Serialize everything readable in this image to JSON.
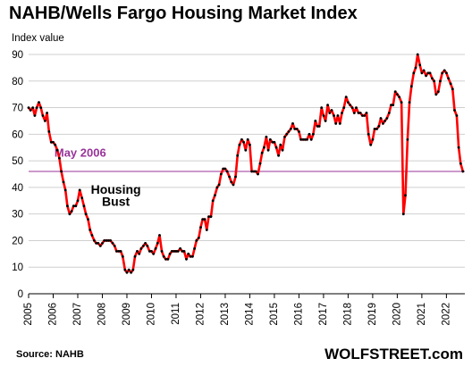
{
  "chart_data": {
    "type": "line",
    "title": "NAHB/Wells Fargo Housing Market Index",
    "ylabel": "Index value",
    "xlabel": "",
    "ylim": [
      0,
      90
    ],
    "xlim": [
      2005.0,
      2022.75
    ],
    "y_ticks": [
      "0",
      "10",
      "20",
      "30",
      "40",
      "50",
      "60",
      "70",
      "80",
      "90"
    ],
    "x_ticks": [
      "2005",
      "2006",
      "2007",
      "2008",
      "2009",
      "2010",
      "2011",
      "2012",
      "2013",
      "2014",
      "2015",
      "2016",
      "2017",
      "2018",
      "2019",
      "2020",
      "2021",
      "2022"
    ],
    "grid": "horizontal",
    "series": [
      {
        "color": "#ff0000",
        "marker_color": "#000000",
        "points": [
          [
            2005.0,
            70
          ],
          [
            2005.08,
            69
          ],
          [
            2005.17,
            70
          ],
          [
            2005.25,
            67
          ],
          [
            2005.33,
            70
          ],
          [
            2005.42,
            72
          ],
          [
            2005.5,
            70
          ],
          [
            2005.58,
            67
          ],
          [
            2005.67,
            65
          ],
          [
            2005.75,
            68
          ],
          [
            2005.83,
            61
          ],
          [
            2005.92,
            57
          ],
          [
            2006.0,
            57
          ],
          [
            2006.08,
            56
          ],
          [
            2006.17,
            54
          ],
          [
            2006.25,
            51
          ],
          [
            2006.33,
            46
          ],
          [
            2006.42,
            42
          ],
          [
            2006.5,
            39
          ],
          [
            2006.58,
            33
          ],
          [
            2006.67,
            30
          ],
          [
            2006.75,
            31
          ],
          [
            2006.83,
            33
          ],
          [
            2006.92,
            33
          ],
          [
            2007.0,
            35
          ],
          [
            2007.08,
            39
          ],
          [
            2007.17,
            36
          ],
          [
            2007.25,
            33
          ],
          [
            2007.33,
            30
          ],
          [
            2007.42,
            28
          ],
          [
            2007.5,
            24
          ],
          [
            2007.58,
            22
          ],
          [
            2007.67,
            20
          ],
          [
            2007.75,
            19
          ],
          [
            2007.83,
            19
          ],
          [
            2007.92,
            18
          ],
          [
            2008.0,
            19
          ],
          [
            2008.08,
            20
          ],
          [
            2008.17,
            20
          ],
          [
            2008.25,
            20
          ],
          [
            2008.33,
            20
          ],
          [
            2008.42,
            19
          ],
          [
            2008.5,
            18
          ],
          [
            2008.58,
            16
          ],
          [
            2008.67,
            16
          ],
          [
            2008.75,
            16
          ],
          [
            2008.83,
            14
          ],
          [
            2008.92,
            9
          ],
          [
            2009.0,
            8
          ],
          [
            2009.08,
            9
          ],
          [
            2009.17,
            8
          ],
          [
            2009.25,
            9
          ],
          [
            2009.33,
            14
          ],
          [
            2009.42,
            16
          ],
          [
            2009.5,
            15
          ],
          [
            2009.58,
            17
          ],
          [
            2009.67,
            18
          ],
          [
            2009.75,
            19
          ],
          [
            2009.83,
            18
          ],
          [
            2009.92,
            16
          ],
          [
            2010.0,
            16
          ],
          [
            2010.08,
            15
          ],
          [
            2010.17,
            17
          ],
          [
            2010.25,
            19
          ],
          [
            2010.33,
            22
          ],
          [
            2010.42,
            16
          ],
          [
            2010.5,
            14
          ],
          [
            2010.58,
            13
          ],
          [
            2010.67,
            13
          ],
          [
            2010.75,
            15
          ],
          [
            2010.83,
            16
          ],
          [
            2010.92,
            16
          ],
          [
            2011.0,
            16
          ],
          [
            2011.08,
            16
          ],
          [
            2011.17,
            17
          ],
          [
            2011.25,
            16
          ],
          [
            2011.33,
            16
          ],
          [
            2011.42,
            13
          ],
          [
            2011.5,
            15
          ],
          [
            2011.58,
            14
          ],
          [
            2011.67,
            14
          ],
          [
            2011.75,
            17
          ],
          [
            2011.83,
            20
          ],
          [
            2011.92,
            21
          ],
          [
            2012.0,
            25
          ],
          [
            2012.08,
            28
          ],
          [
            2012.17,
            28
          ],
          [
            2012.25,
            24
          ],
          [
            2012.33,
            29
          ],
          [
            2012.42,
            29
          ],
          [
            2012.5,
            35
          ],
          [
            2012.58,
            37
          ],
          [
            2012.67,
            40
          ],
          [
            2012.75,
            41
          ],
          [
            2012.83,
            45
          ],
          [
            2012.92,
            47
          ],
          [
            2013.0,
            47
          ],
          [
            2013.08,
            46
          ],
          [
            2013.17,
            44
          ],
          [
            2013.25,
            42
          ],
          [
            2013.33,
            41
          ],
          [
            2013.42,
            44
          ],
          [
            2013.5,
            52
          ],
          [
            2013.58,
            56
          ],
          [
            2013.67,
            58
          ],
          [
            2013.75,
            57
          ],
          [
            2013.83,
            54
          ],
          [
            2013.92,
            58
          ],
          [
            2014.0,
            56
          ],
          [
            2014.08,
            46
          ],
          [
            2014.17,
            46
          ],
          [
            2014.25,
            46
          ],
          [
            2014.33,
            45
          ],
          [
            2014.42,
            49
          ],
          [
            2014.5,
            53
          ],
          [
            2014.58,
            55
          ],
          [
            2014.67,
            59
          ],
          [
            2014.75,
            54
          ],
          [
            2014.83,
            58
          ],
          [
            2014.92,
            57
          ],
          [
            2015.0,
            57
          ],
          [
            2015.08,
            55
          ],
          [
            2015.17,
            52
          ],
          [
            2015.25,
            56
          ],
          [
            2015.33,
            54
          ],
          [
            2015.42,
            59
          ],
          [
            2015.5,
            60
          ],
          [
            2015.58,
            61
          ],
          [
            2015.67,
            62
          ],
          [
            2015.75,
            64
          ],
          [
            2015.83,
            62
          ],
          [
            2015.92,
            62
          ],
          [
            2016.0,
            61
          ],
          [
            2016.08,
            58
          ],
          [
            2016.17,
            58
          ],
          [
            2016.25,
            58
          ],
          [
            2016.33,
            58
          ],
          [
            2016.42,
            60
          ],
          [
            2016.5,
            58
          ],
          [
            2016.58,
            60
          ],
          [
            2016.67,
            65
          ],
          [
            2016.75,
            63
          ],
          [
            2016.83,
            63
          ],
          [
            2016.92,
            70
          ],
          [
            2017.0,
            67
          ],
          [
            2017.08,
            65
          ],
          [
            2017.17,
            71
          ],
          [
            2017.25,
            68
          ],
          [
            2017.33,
            69
          ],
          [
            2017.42,
            67
          ],
          [
            2017.5,
            64
          ],
          [
            2017.58,
            67
          ],
          [
            2017.67,
            64
          ],
          [
            2017.75,
            68
          ],
          [
            2017.83,
            70
          ],
          [
            2017.92,
            74
          ],
          [
            2018.0,
            72
          ],
          [
            2018.08,
            71
          ],
          [
            2018.17,
            70
          ],
          [
            2018.25,
            68
          ],
          [
            2018.33,
            70
          ],
          [
            2018.42,
            68
          ],
          [
            2018.5,
            68
          ],
          [
            2018.58,
            67
          ],
          [
            2018.67,
            67
          ],
          [
            2018.75,
            68
          ],
          [
            2018.83,
            60
          ],
          [
            2018.92,
            56
          ],
          [
            2019.0,
            58
          ],
          [
            2019.08,
            62
          ],
          [
            2019.17,
            62
          ],
          [
            2019.25,
            63
          ],
          [
            2019.33,
            66
          ],
          [
            2019.42,
            64
          ],
          [
            2019.5,
            65
          ],
          [
            2019.58,
            66
          ],
          [
            2019.67,
            68
          ],
          [
            2019.75,
            71
          ],
          [
            2019.83,
            71
          ],
          [
            2019.92,
            76
          ],
          [
            2020.0,
            75
          ],
          [
            2020.08,
            74
          ],
          [
            2020.17,
            72
          ],
          [
            2020.25,
            30
          ],
          [
            2020.33,
            37
          ],
          [
            2020.42,
            58
          ],
          [
            2020.5,
            72
          ],
          [
            2020.58,
            78
          ],
          [
            2020.67,
            83
          ],
          [
            2020.75,
            85
          ],
          [
            2020.83,
            90
          ],
          [
            2020.92,
            86
          ],
          [
            2021.0,
            83
          ],
          [
            2021.08,
            84
          ],
          [
            2021.17,
            82
          ],
          [
            2021.25,
            83
          ],
          [
            2021.33,
            83
          ],
          [
            2021.42,
            81
          ],
          [
            2021.5,
            80
          ],
          [
            2021.58,
            75
          ],
          [
            2021.67,
            76
          ],
          [
            2021.75,
            80
          ],
          [
            2021.83,
            83
          ],
          [
            2021.92,
            84
          ],
          [
            2022.0,
            83
          ],
          [
            2022.08,
            81
          ],
          [
            2022.17,
            79
          ],
          [
            2022.25,
            77
          ],
          [
            2022.33,
            69
          ],
          [
            2022.42,
            67
          ],
          [
            2022.5,
            55
          ],
          [
            2022.58,
            49
          ],
          [
            2022.67,
            46
          ]
        ]
      }
    ],
    "reference_line": {
      "value": 46,
      "label": "May 2006",
      "color": "#993399"
    },
    "annotations": [
      {
        "text": "Housing",
        "x": 2008.55,
        "y": 37.6
      },
      {
        "text": "Bust",
        "x": 2008.55,
        "y": 33.0
      }
    ]
  },
  "footer": {
    "source": "Source: NAHB",
    "brand": "WOLFSTREET.com"
  }
}
